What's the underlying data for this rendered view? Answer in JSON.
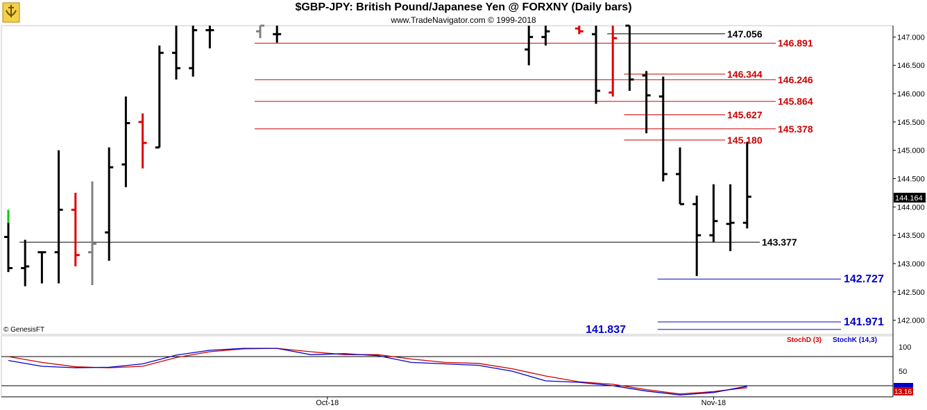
{
  "header": {
    "title": "$GBP-JPY:  British Pound/Japanese Yen @ FORXNY  (Daily bars)",
    "subtitle": "www.TradeNavigator.com © 1999-2018"
  },
  "watermark": "© GenesisFT",
  "colors": {
    "up_close": "#000000",
    "red_bar": "#e00000",
    "gray_bar": "#808080",
    "green_bar": "#00cc00",
    "red_level": "#cc0000",
    "blue_level": "#0000cc",
    "stoch_d": "#cc0000",
    "stoch_k": "#0000cc",
    "last_price_bg": "#000000"
  },
  "chart_data": [
    {
      "type": "bar",
      "price_axis": {
        "ylim": [
          141.75,
          147.2
        ],
        "ticks": [
          "147.000",
          "146.500",
          "146.000",
          "145.500",
          "145.000",
          "144.500",
          "144.000",
          "143.500",
          "143.000",
          "142.500",
          "142.000"
        ]
      },
      "last_price": "144.164",
      "x_ticks": [
        {
          "label": "Oct-18",
          "index": 19
        },
        {
          "label": "Nov-18",
          "index": 42
        }
      ],
      "bars": [
        {
          "o": 143.47,
          "h": 143.72,
          "l": 142.85,
          "c": 142.92,
          "col": "black"
        },
        {
          "o": 142.92,
          "h": 143.42,
          "l": 142.6,
          "c": 142.95,
          "col": "black"
        },
        {
          "o": 143.2,
          "h": 143.2,
          "l": 142.65,
          "c": 143.2,
          "col": "black"
        },
        {
          "o": 143.2,
          "h": 145.0,
          "l": 142.65,
          "c": 143.95,
          "col": "black"
        },
        {
          "o": 143.95,
          "h": 144.25,
          "l": 142.95,
          "c": 143.15,
          "col": "red"
        },
        {
          "o": 143.2,
          "h": 144.45,
          "l": 142.62,
          "c": 143.35,
          "col": "gray"
        },
        {
          "o": 143.55,
          "h": 145.05,
          "l": 143.05,
          "c": 144.7,
          "col": "black"
        },
        {
          "o": 144.75,
          "h": 145.95,
          "l": 144.35,
          "c": 145.48,
          "col": "black"
        },
        {
          "o": 145.5,
          "h": 145.65,
          "l": 144.68,
          "c": 145.13,
          "col": "red"
        },
        {
          "o": 145.05,
          "h": 146.85,
          "l": 145.05,
          "c": 146.72,
          "col": "black"
        },
        {
          "o": 146.72,
          "h": 147.2,
          "l": 146.25,
          "c": 146.45,
          "col": "black"
        },
        {
          "o": 146.45,
          "h": 147.2,
          "l": 146.3,
          "c": 147.12,
          "col": "black"
        },
        {
          "o": 147.12,
          "h": 147.2,
          "l": 146.8,
          "c": 147.12,
          "col": "black"
        },
        {
          "o": 147.1,
          "h": 147.2,
          "l": 146.98,
          "c": 147.2,
          "col": "gray"
        },
        {
          "o": 147.05,
          "h": 147.2,
          "l": 146.9,
          "c": 147.05,
          "col": "black"
        },
        {
          "o": 146.78,
          "h": 147.2,
          "l": 146.5,
          "c": 147.0,
          "col": "black"
        },
        {
          "o": 147.0,
          "h": 147.2,
          "l": 146.85,
          "c": 147.1,
          "col": "black"
        },
        {
          "o": 147.15,
          "h": 147.2,
          "l": 147.05,
          "c": 147.1,
          "col": "red"
        },
        {
          "o": 147.05,
          "h": 147.2,
          "l": 145.82,
          "c": 146.05,
          "col": "black"
        },
        {
          "o": 146.02,
          "h": 147.2,
          "l": 145.95,
          "c": 146.98,
          "col": "red"
        },
        {
          "o": 147.2,
          "h": 147.2,
          "l": 146.05,
          "c": 146.25,
          "col": "black"
        },
        {
          "o": 146.32,
          "h": 146.4,
          "l": 145.3,
          "c": 145.97,
          "col": "black"
        },
        {
          "o": 145.95,
          "h": 146.3,
          "l": 144.45,
          "c": 144.58,
          "col": "black"
        },
        {
          "o": 144.58,
          "h": 145.05,
          "l": 144.05,
          "c": 144.05,
          "col": "black"
        },
        {
          "o": 144.05,
          "h": 144.2,
          "l": 142.78,
          "c": 143.5,
          "col": "black"
        },
        {
          "o": 143.5,
          "h": 144.4,
          "l": 143.38,
          "c": 143.75,
          "col": "black"
        },
        {
          "o": 143.7,
          "h": 144.4,
          "l": 143.22,
          "c": 143.72,
          "col": "black"
        },
        {
          "o": 143.72,
          "h": 145.15,
          "l": 143.62,
          "c": 144.18,
          "col": "black"
        }
      ],
      "bar_x_indices": [
        0,
        1,
        2,
        3,
        4,
        5,
        6,
        7,
        8,
        9,
        10,
        11,
        12,
        15,
        16,
        31,
        32,
        34,
        35,
        36,
        37,
        38,
        39,
        40,
        41,
        42,
        43,
        44
      ],
      "levels": [
        {
          "value": "147.056",
          "color": "black",
          "from": 36
        },
        {
          "value": "146.891",
          "color": "red",
          "from": 15
        },
        {
          "value": "146.344",
          "color": "red",
          "from": 37
        },
        {
          "value": "146.246",
          "color": "red",
          "from": 15
        },
        {
          "value": "145.864",
          "color": "red",
          "from": 15
        },
        {
          "value": "145.627",
          "color": "red",
          "from": 37
        },
        {
          "value": "145.378",
          "color": "red",
          "from": 15
        },
        {
          "value": "145.180",
          "color": "red",
          "from": 37
        },
        {
          "value": "143.377",
          "color": "black",
          "from": 1
        },
        {
          "value": "142.727",
          "color": "blue",
          "from": 39
        },
        {
          "value": "141.971",
          "color": "blue",
          "from": 39
        },
        {
          "value": "141.837",
          "color": "blue",
          "from": 39
        }
      ]
    },
    {
      "type": "line",
      "legend": [
        "StochD (3)",
        "StochK (14,3)"
      ],
      "ylim": [
        0,
        100
      ],
      "y_ticks": [
        "100",
        "50"
      ],
      "last_value": "13.16",
      "series": [
        {
          "name": "StochD (3)",
          "color": "red",
          "x": [
            0,
            2,
            4,
            6,
            8,
            10,
            12,
            14,
            16,
            18,
            20,
            22,
            24,
            26,
            28,
            30,
            32,
            34,
            36,
            38,
            40,
            42,
            44
          ],
          "values": [
            80,
            68,
            59,
            57,
            60,
            78,
            90,
            96,
            97,
            90,
            84,
            84,
            75,
            68,
            66,
            55,
            40,
            28,
            23,
            12,
            3,
            8,
            16
          ]
        },
        {
          "name": "StochK (14,3)",
          "color": "blue",
          "x": [
            0,
            2,
            4,
            6,
            8,
            10,
            12,
            14,
            16,
            18,
            20,
            22,
            24,
            26,
            28,
            30,
            32,
            34,
            36,
            38,
            40,
            42,
            44
          ],
          "values": [
            72,
            60,
            57,
            58,
            65,
            83,
            93,
            97,
            97,
            84,
            86,
            82,
            68,
            65,
            62,
            50,
            30,
            27,
            20,
            9,
            1,
            6,
            19
          ]
        }
      ]
    }
  ]
}
